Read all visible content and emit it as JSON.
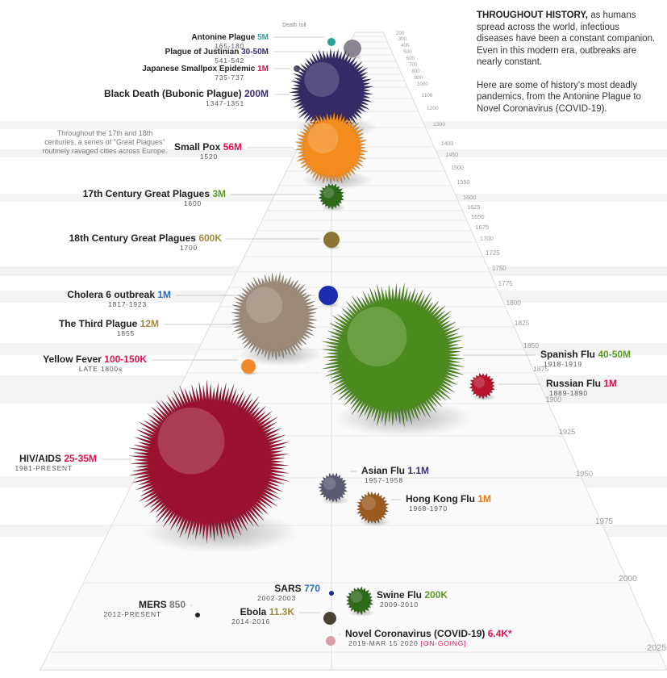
{
  "intro": {
    "lead": "THROUGHOUT HISTORY,",
    "body": " as humans spread across the world, infectious diseases have been a constant companion. Even in this modern era, outbreaks are nearly constant.",
    "body2": "Here are some of history's most deadly pandemics, from the Antonine Plague to Novel Coronavirus (COVID-19)."
  },
  "note": "Throughout the 17th and 18th centuries, a series of \"Great Plagues\" routinely ravaged cities across Europe.",
  "death_toll_label": "Death toll",
  "colors": {
    "teal": "#2aa198",
    "purple": "#3b2d7a",
    "red": "#e0114b",
    "green": "#5b9b22",
    "olive": "#a08a3a",
    "blue": "#2b6fb8",
    "orange": "#ea7a14",
    "grey": "#777777"
  },
  "chart_data": {
    "type": "scatter",
    "title": "",
    "xlabel": "",
    "ylabel": "",
    "y_axis": "year (timeline, top to bottom)",
    "timeline_ticks": [
      "200",
      "300",
      "400",
      "500",
      "600",
      "700",
      "800",
      "900",
      "1000",
      "1100",
      "1200",
      "1300",
      "1400",
      "1450",
      "1500",
      "1550",
      "1600",
      "1625",
      "1650",
      "1675",
      "1700",
      "1725",
      "1750",
      "1775",
      "1800",
      "1825",
      "1850",
      "1875",
      "1900",
      "1925",
      "1950",
      "1975",
      "2000",
      "2025"
    ],
    "points": [
      {
        "name": "Antonine Plague",
        "years": "165-180",
        "toll": "5M",
        "deaths_millions": 5,
        "color": "#2aa198",
        "bubble": "#2aa198"
      },
      {
        "name": "Plague of Justinian",
        "years": "541-542",
        "toll": "30-50M",
        "deaths_millions": 40,
        "color": "#3b2d7a",
        "bubble": "#8a8490"
      },
      {
        "name": "Japanese Smallpox Epidemic",
        "years": "735-737",
        "toll": "1M",
        "deaths_millions": 1,
        "color": "#e0114b",
        "bubble": "#5a4e6a"
      },
      {
        "name": "Black Death (Bubonic Plague)",
        "years": "1347-1351",
        "toll": "200M",
        "deaths_millions": 200,
        "color": "#3b2d7a",
        "bubble": "#352a66"
      },
      {
        "name": "Small Pox",
        "years": "1520",
        "toll": "56M",
        "deaths_millions": 56,
        "color": "#e0114b",
        "bubble": "#f58c1e"
      },
      {
        "name": "17th Century Great Plagues",
        "years": "1600",
        "toll": "3M",
        "deaths_millions": 3,
        "color": "#5b9b22",
        "bubble": "#2e6a1a"
      },
      {
        "name": "18th Century Great Plagues",
        "years": "1700",
        "toll": "600K",
        "deaths_millions": 0.6,
        "color": "#a08a3a",
        "bubble": "#8a7430"
      },
      {
        "name": "Cholera 6 outbreak",
        "years": "1817-1923",
        "toll": "1M",
        "deaths_millions": 1,
        "color": "#2b6fb8",
        "bubble": "#1a2cb0"
      },
      {
        "name": "The Third Plague",
        "years": "1855",
        "toll": "12M",
        "deaths_millions": 12,
        "color": "#a08a3a",
        "bubble": "#9b8a78"
      },
      {
        "name": "Yellow Fever",
        "years": "LATE 1800s",
        "toll": "100-150K",
        "deaths_millions": 0.125,
        "color": "#e0114b",
        "bubble": "#f08a2a"
      },
      {
        "name": "Spanish Flu",
        "years": "1918-1919",
        "toll": "40-50M",
        "deaths_millions": 45,
        "color": "#5b9b22",
        "bubble": "#4b8a1c"
      },
      {
        "name": "Russian Flu",
        "years": "1889-1890",
        "toll": "1M",
        "deaths_millions": 1,
        "color": "#e0114b",
        "bubble": "#b8142c"
      },
      {
        "name": "HIV/AIDS",
        "years": "1981-PRESENT",
        "toll": "25-35M",
        "deaths_millions": 30,
        "color": "#e0114b",
        "bubble": "#9a1030"
      },
      {
        "name": "Asian Flu",
        "years": "1957-1958",
        "toll": "1.1M",
        "deaths_millions": 1.1,
        "color": "#3b2d7a",
        "bubble": "#5a5a70"
      },
      {
        "name": "Hong Kong Flu",
        "years": "1968-1970",
        "toll": "1M",
        "deaths_millions": 1,
        "color": "#ea7a14",
        "bubble": "#9a5a20"
      },
      {
        "name": "SARS",
        "years": "2002-2003",
        "toll": "770",
        "deaths_millions": 0.00077,
        "color": "#2b6fb8",
        "bubble": "#1a2a90"
      },
      {
        "name": "MERS",
        "years": "2012-PRESENT",
        "toll": "850",
        "deaths_millions": 0.00085,
        "color": "#777777",
        "bubble": "#222222"
      },
      {
        "name": "Swine Flu",
        "years": "2009-2010",
        "toll": "200K",
        "deaths_millions": 0.2,
        "color": "#5b9b22",
        "bubble": "#2e6a1a"
      },
      {
        "name": "Ebola",
        "years": "2014-2016",
        "toll": "11.3K",
        "deaths_millions": 0.0113,
        "color": "#a08a3a",
        "bubble": "#4a4232"
      },
      {
        "name": "Novel Coronavirus (COVID-19)",
        "years": "2019-MAR 15 2020",
        "toll": "6.4K*",
        "deaths_millions": 0.0064,
        "color": "#e0114b",
        "bubble": "#d9a0aa",
        "status": "[ON-GOING]"
      }
    ]
  }
}
